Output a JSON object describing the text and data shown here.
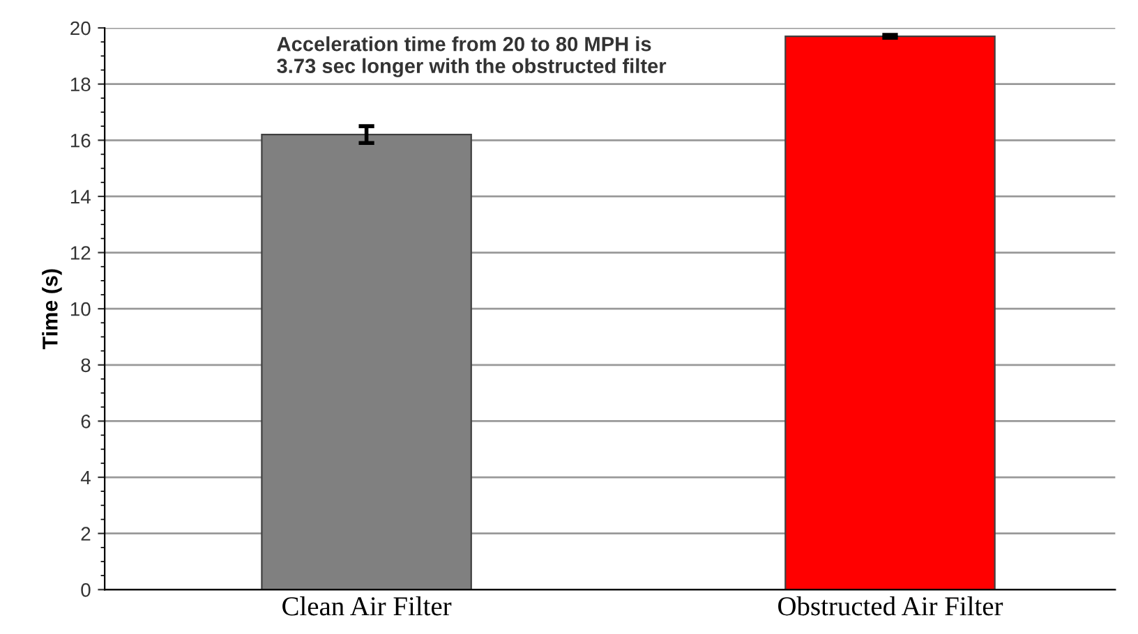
{
  "chart_data": {
    "type": "bar",
    "ylabel": "Time (s)",
    "categories": [
      "Clean Air Filter",
      "Obstructed Air Filter"
    ],
    "values": [
      16.2,
      19.7
    ],
    "colors": [
      "#808080",
      "#ff0000"
    ],
    "errors": [
      0.3,
      0.05
    ],
    "ylim": [
      0,
      20
    ],
    "yticks": [
      0,
      2,
      4,
      6,
      8,
      10,
      12,
      14,
      16,
      18,
      20
    ],
    "grid": "y",
    "annotations": [
      "Acceleration time from 20 to 80 MPH is\n3.73 sec longer with the obstructed filter"
    ]
  }
}
